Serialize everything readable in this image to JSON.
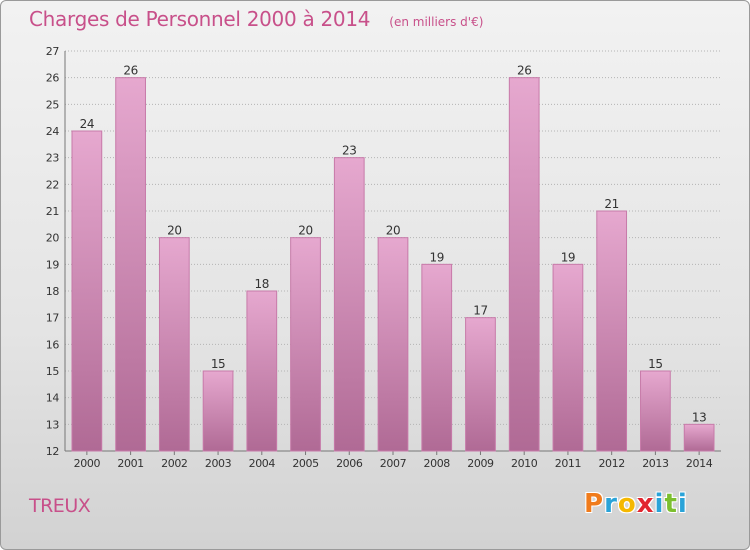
{
  "colors": {
    "title": "#c8508a",
    "bar_top": "#e6a8cf",
    "bar_bottom": "#b06a95",
    "bar_stroke": "#c77aa9",
    "grid": "#b4b4b4",
    "logo_p": "#f07b1b",
    "logo_r": "#2aa3d8",
    "logo_o": "#f5b800",
    "logo_x": "#e2262f",
    "logo_i": "#2aa3d8",
    "logo_t": "#7cbf2e",
    "logo_i2": "#2aa3d8"
  },
  "commune": "TREUX",
  "logo": {
    "text": "Proxiti",
    "letters": [
      "P",
      "r",
      "o",
      "x",
      "i",
      "t",
      "i"
    ]
  },
  "chart_data": {
    "type": "bar",
    "title": "Charges de Personnel 2000 à 2014",
    "subtitle": "(en milliers d'€)",
    "categories": [
      "2000",
      "2001",
      "2002",
      "2003",
      "2004",
      "2005",
      "2006",
      "2007",
      "2008",
      "2009",
      "2010",
      "2011",
      "2012",
      "2013",
      "2014"
    ],
    "values": [
      24,
      26,
      20,
      15,
      18,
      20,
      23,
      20,
      19,
      17,
      26,
      19,
      21,
      15,
      13
    ],
    "ylim": [
      12,
      27
    ],
    "yticks": [
      12,
      13,
      14,
      15,
      16,
      17,
      18,
      19,
      20,
      21,
      22,
      23,
      24,
      25,
      26,
      27
    ],
    "grid": true,
    "legend": "none"
  }
}
